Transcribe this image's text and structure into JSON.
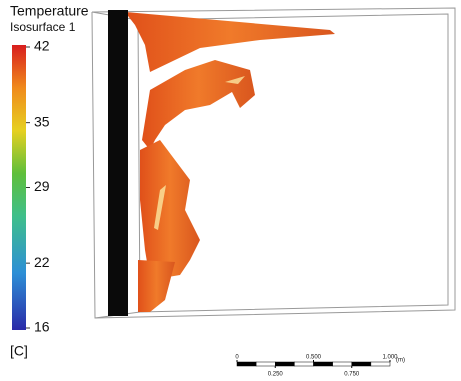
{
  "legend": {
    "title": "Temperature",
    "subtitle": "Isosurface 1",
    "range": [
      16,
      42
    ],
    "ticks": [
      42,
      35,
      29,
      22,
      16
    ],
    "unit": "[C]"
  },
  "scale_bar": {
    "range": [
      0,
      1
    ],
    "ticks_top": [
      0,
      {
        "value": 0.5,
        "label": "0.500"
      },
      {
        "value": 1,
        "label": "1.000"
      }
    ],
    "ticks_bottom": [
      {
        "value": 0.25,
        "label": "0.250"
      },
      {
        "value": 0.75,
        "label": "0.750"
      }
    ],
    "unit": "(m)"
  }
}
